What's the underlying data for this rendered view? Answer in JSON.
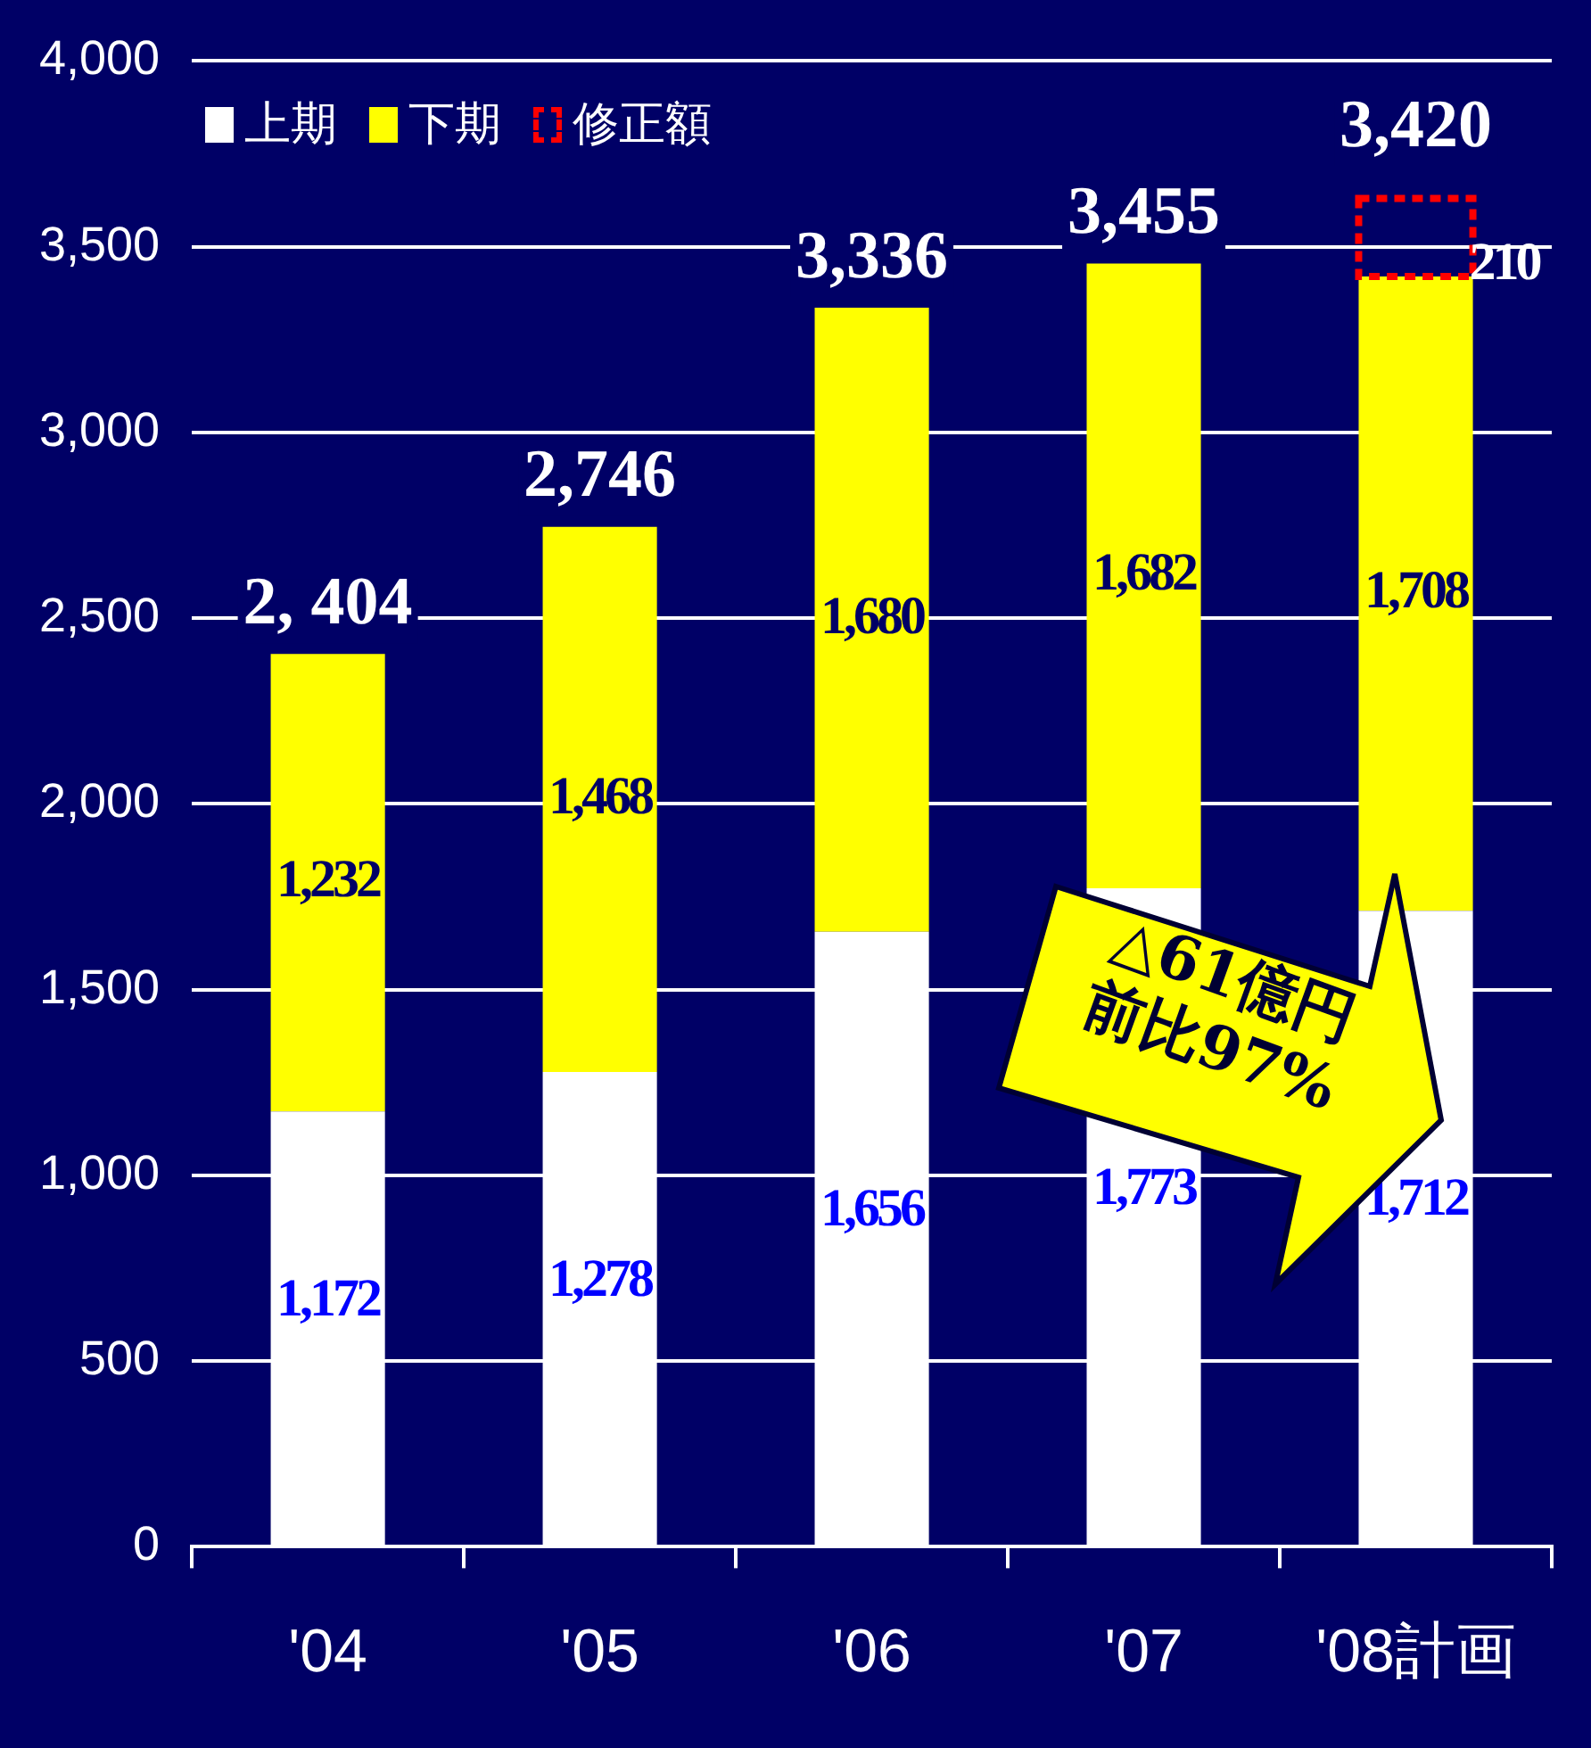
{
  "chart_data": {
    "type": "bar",
    "stacked": true,
    "categories": [
      "'04",
      "'05",
      "'06",
      "'07",
      "'08計画"
    ],
    "series": [
      {
        "name": "上期",
        "color": "#ffffff",
        "values": [
          1172,
          1278,
          1656,
          1773,
          1712
        ],
        "value_labels": [
          "1,172",
          "1,278",
          "1,656",
          "1,773",
          "1,712"
        ]
      },
      {
        "name": "下期",
        "color": "#ffff00",
        "values": [
          1232,
          1468,
          1680,
          1682,
          1708
        ],
        "value_labels": [
          "1,232",
          "1,468",
          "1,680",
          "1,682",
          "1,708"
        ]
      },
      {
        "name": "修正額",
        "color": "#ff0000",
        "line_style": "dashed",
        "values": [
          null,
          null,
          null,
          null,
          210
        ],
        "value_labels": [
          null,
          null,
          null,
          null,
          "210"
        ]
      }
    ],
    "totals": [
      "2, 404",
      "2,746",
      "3,336",
      "3,455",
      null
    ],
    "ylim": [
      0,
      4000
    ],
    "yticks": [
      0,
      {
        "value": 500,
        "label": "500"
      },
      {
        "value": 1000,
        "label": "1,000"
      },
      {
        "value": 1500,
        "label": "1,500"
      },
      {
        "value": 2000,
        "label": "2,000"
      },
      {
        "value": 2500,
        "label": "2,500"
      },
      {
        "value": 3000,
        "label": "3,000"
      },
      {
        "value": 3500,
        "label": "3,500"
      },
      {
        "value": 4000,
        "label": "4,000"
      }
    ],
    "grid": "y",
    "legend": "top left",
    "annotations": [
      {
        "text": "3,420",
        "x": "'08計画",
        "y": 3420
      },
      "△61億円",
      "前比97%"
    ]
  }
}
